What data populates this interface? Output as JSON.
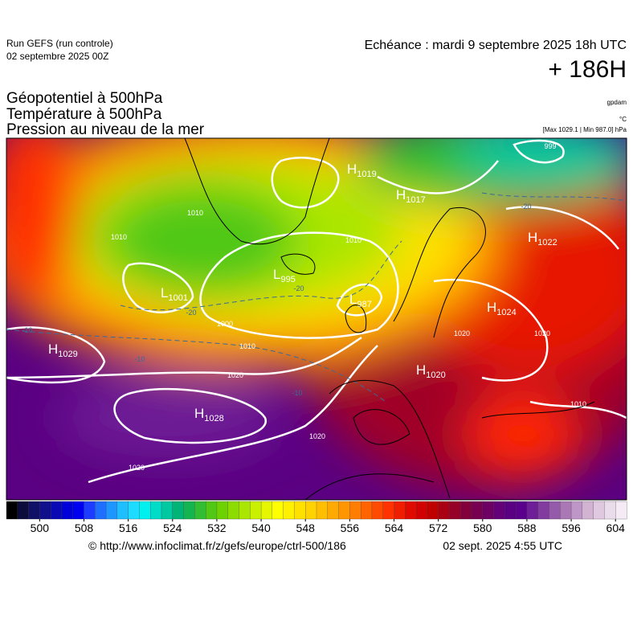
{
  "header": {
    "run": "Run GEFS (run controle)",
    "run_date": "02 septembre 2025 00Z",
    "valid": "Echéance : mardi 9 septembre 2025 18h UTC",
    "lead": "+ 186H"
  },
  "titles": [
    "Géopotentiel à 500hPa",
    "Température à 500hPa",
    "Pression au niveau de la mer"
  ],
  "units": {
    "geopotential": "gpdam",
    "temperature": "°C",
    "pressure": "[Max 1029.1 | Min 987.0] hPa"
  },
  "pressure_centers": [
    {
      "letter": "H",
      "value": 1029
    },
    {
      "letter": "H",
      "value": 1028
    },
    {
      "letter": "L",
      "value": 1001
    },
    {
      "letter": "L",
      "value": 995
    },
    {
      "letter": "L",
      "value": 987
    },
    {
      "letter": "H",
      "value": 1019
    },
    {
      "letter": "H",
      "value": 1017
    },
    {
      "letter": "H",
      "value": 1022
    },
    {
      "letter": "H",
      "value": 1024
    },
    {
      "letter": "H",
      "value": 1020
    }
  ],
  "isobar_labels": [
    "1010",
    "1010",
    "1000",
    "1010",
    "1020",
    "1020",
    "1020",
    "1010",
    "1020",
    "1020",
    "1010",
    "999"
  ],
  "temperature_labels": [
    "-20",
    "-20",
    "-10",
    "-10",
    "-10",
    "-20"
  ],
  "colorbar": {
    "range": [
      494,
      606
    ],
    "ticks": [
      500,
      508,
      516,
      524,
      532,
      540,
      548,
      556,
      564,
      572,
      580,
      588,
      596,
      604
    ],
    "colors": [
      "#000000",
      "#0c0c3c",
      "#101066",
      "#10108c",
      "#0a0ab4",
      "#0000d8",
      "#0000f0",
      "#1e3cff",
      "#1e6eff",
      "#1e96ff",
      "#1ebeff",
      "#1edcff",
      "#00f0f0",
      "#00dcc8",
      "#00c8a0",
      "#00b478",
      "#14b450",
      "#32be32",
      "#50c814",
      "#6ed200",
      "#8cdc00",
      "#aae600",
      "#c8f000",
      "#e6f500",
      "#ffff00",
      "#fff000",
      "#ffe100",
      "#ffd200",
      "#ffbe00",
      "#ffaa00",
      "#ff9600",
      "#ff7d00",
      "#ff6400",
      "#ff4b00",
      "#ff3200",
      "#f01e00",
      "#e10a00",
      "#d20000",
      "#be0000",
      "#aa0014",
      "#960028",
      "#82003c",
      "#780050",
      "#6e0064",
      "#640078",
      "#5a0082",
      "#5a008c",
      "#6e1e96",
      "#823ca0",
      "#965aaa",
      "#aa78b4",
      "#be96c8",
      "#d2b4d2",
      "#e1c8e1",
      "#ebdceb",
      "#f5ebf5"
    ]
  },
  "footer": {
    "url": "© http://www.infoclimat.fr/z/gefs/europe/ctrl-500/186",
    "issued": "02 sept. 2025  4:55 UTC"
  }
}
